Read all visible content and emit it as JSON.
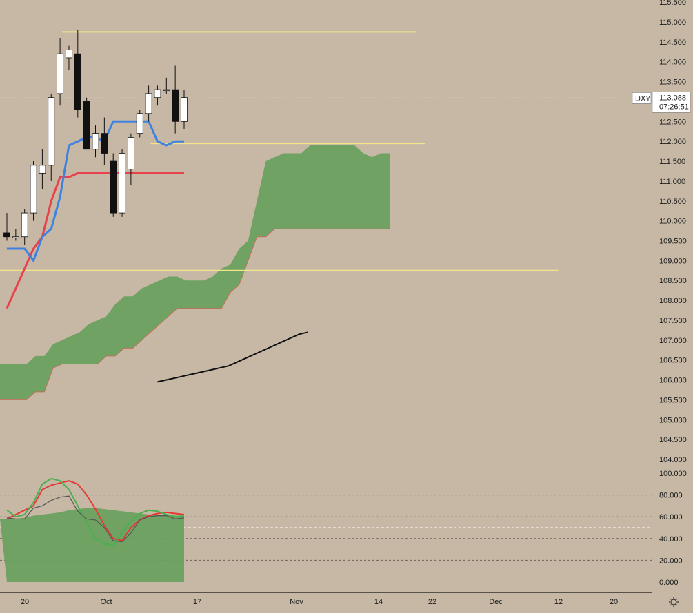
{
  "chart_data": [
    {
      "type": "candlestick",
      "symbol": "DXY",
      "last_price": "113.088",
      "countdown": "07:26:51",
      "ylim": [
        104.0,
        115.5
      ],
      "y_ticks": [
        "115.500",
        "115.000",
        "114.500",
        "114.000",
        "113.500",
        "113.000",
        "112.500",
        "112.000",
        "111.500",
        "111.000",
        "110.500",
        "110.000",
        "109.500",
        "109.000",
        "108.500",
        "108.000",
        "107.500",
        "107.000",
        "106.500",
        "106.000",
        "105.500",
        "105.000",
        "104.500",
        "104.000"
      ],
      "x_ticks": [
        "20",
        "Oct",
        "17",
        "Nov",
        "14",
        "22",
        "Dec",
        "12",
        "20"
      ],
      "candles": [
        {
          "o": 109.7,
          "h": 110.2,
          "l": 109.5,
          "c": 109.6
        },
        {
          "o": 109.6,
          "h": 109.8,
          "l": 109.5,
          "c": 109.6
        },
        {
          "o": 109.6,
          "h": 110.3,
          "l": 109.4,
          "c": 110.2
        },
        {
          "o": 110.2,
          "h": 111.5,
          "l": 110.0,
          "c": 111.4
        },
        {
          "o": 111.2,
          "h": 111.8,
          "l": 110.8,
          "c": 111.4
        },
        {
          "o": 111.4,
          "h": 113.2,
          "l": 111.0,
          "c": 113.1
        },
        {
          "o": 113.2,
          "h": 114.6,
          "l": 112.9,
          "c": 114.2
        },
        {
          "o": 114.1,
          "h": 114.4,
          "l": 113.8,
          "c": 114.3
        },
        {
          "o": 114.2,
          "h": 114.8,
          "l": 112.6,
          "c": 112.8
        },
        {
          "o": 113.0,
          "h": 113.1,
          "l": 111.8,
          "c": 111.8
        },
        {
          "o": 111.8,
          "h": 112.4,
          "l": 111.6,
          "c": 112.2
        },
        {
          "o": 112.2,
          "h": 112.6,
          "l": 111.4,
          "c": 111.7
        },
        {
          "o": 111.5,
          "h": 111.7,
          "l": 110.1,
          "c": 110.2
        },
        {
          "o": 110.2,
          "h": 111.8,
          "l": 110.1,
          "c": 111.7
        },
        {
          "o": 111.3,
          "h": 112.2,
          "l": 110.9,
          "c": 112.1
        },
        {
          "o": 112.2,
          "h": 112.8,
          "l": 112.1,
          "c": 112.7
        },
        {
          "o": 112.7,
          "h": 113.4,
          "l": 112.5,
          "c": 113.2
        },
        {
          "o": 113.1,
          "h": 113.4,
          "l": 112.9,
          "c": 113.3
        },
        {
          "o": 113.3,
          "h": 113.6,
          "l": 113.2,
          "c": 113.3
        },
        {
          "o": 113.3,
          "h": 113.9,
          "l": 112.2,
          "c": 112.5
        },
        {
          "o": 112.5,
          "h": 113.3,
          "l": 112.3,
          "c": 113.1
        }
      ],
      "tenkan_sen": [
        109.3,
        109.3,
        109.3,
        109.0,
        109.6,
        109.8,
        110.6,
        111.9,
        112.0,
        112.1,
        112.1,
        112.0,
        112.5,
        112.5,
        112.5,
        112.5,
        112.5,
        112.0,
        111.9,
        112.0,
        112.0
      ],
      "kijun_sen": [
        107.8,
        108.3,
        108.8,
        109.3,
        109.6,
        110.5,
        111.1,
        111.1,
        111.2,
        111.2,
        111.2,
        111.2,
        111.2,
        111.2,
        111.2,
        111.2,
        111.2,
        111.2,
        111.2,
        111.2,
        111.2
      ],
      "cloud_x": [
        0,
        1,
        2,
        3,
        4,
        5,
        6,
        7,
        8,
        9,
        10,
        11,
        12,
        13,
        14,
        15,
        16,
        17,
        18,
        19,
        20,
        21,
        22,
        23,
        24,
        25,
        26,
        27,
        28,
        29,
        30,
        31,
        32,
        33,
        34,
        35,
        36,
        37,
        38,
        39,
        40,
        41,
        42,
        43,
        44,
        45,
        46,
        47,
        48
      ],
      "cloud_upper": [
        106.4,
        106.4,
        106.4,
        106.4,
        106.6,
        106.6,
        106.9,
        107.0,
        107.1,
        107.2,
        107.4,
        107.5,
        107.6,
        107.9,
        108.1,
        108.1,
        108.3,
        108.4,
        108.5,
        108.6,
        108.6,
        108.5,
        108.5,
        108.5,
        108.6,
        108.8,
        108.9,
        109.3,
        109.5,
        110.5,
        111.5,
        111.6,
        111.7,
        111.7,
        111.7,
        111.9,
        111.9,
        111.9,
        111.9,
        111.9,
        111.9,
        111.7,
        111.6,
        111.7,
        111.7,
        null,
        null,
        null,
        null
      ],
      "cloud_lower": [
        105.5,
        105.5,
        105.5,
        105.5,
        105.7,
        105.7,
        106.3,
        106.4,
        106.4,
        106.4,
        106.4,
        106.4,
        106.6,
        106.6,
        106.8,
        106.8,
        107.0,
        107.2,
        107.4,
        107.6,
        107.8,
        107.8,
        107.8,
        107.8,
        107.8,
        107.8,
        108.2,
        108.4,
        109.0,
        109.6,
        109.6,
        109.8,
        109.8,
        109.8,
        109.8,
        109.8,
        109.8,
        109.8,
        109.8,
        109.8,
        109.8,
        109.8,
        109.8,
        109.8,
        109.8,
        null,
        null,
        null,
        null
      ],
      "chikou_curve": [
        [
          17,
          105.95
        ],
        [
          18,
          106.0
        ],
        [
          19,
          106.05
        ],
        [
          20,
          106.1
        ],
        [
          21,
          106.15
        ],
        [
          22,
          106.2
        ],
        [
          23,
          106.25
        ],
        [
          24,
          106.3
        ],
        [
          25,
          106.35
        ],
        [
          26,
          106.45
        ],
        [
          27,
          106.55
        ],
        [
          28,
          106.65
        ],
        [
          29,
          106.75
        ],
        [
          30,
          106.85
        ],
        [
          31,
          106.95
        ],
        [
          32,
          107.05
        ],
        [
          33,
          107.15
        ],
        [
          34,
          107.2
        ]
      ],
      "levels": [
        {
          "price": 114.75,
          "x_from": 7,
          "x_to": 47
        },
        {
          "price": 111.95,
          "x_from": 17,
          "x_to": 48
        },
        {
          "price": 108.75,
          "x_from": 0,
          "x_to": 63
        }
      ]
    },
    {
      "type": "oscillator",
      "ylim": [
        0,
        100
      ],
      "y_ticks": [
        "100.000",
        "80.000",
        "60.000",
        "40.000",
        "20.000",
        "0.000"
      ],
      "reference_lines": [
        80,
        60,
        50,
        40,
        20
      ],
      "area_fill": [
        58,
        58,
        59,
        61,
        62,
        63,
        64,
        66,
        67,
        68,
        68,
        67,
        66,
        65,
        64,
        63,
        62,
        62,
        62,
        61,
        61
      ],
      "series": [
        {
          "color": "#e53935",
          "values": [
            58,
            62,
            66,
            70,
            85,
            89,
            91,
            93,
            90,
            80,
            67,
            52,
            40,
            38,
            50,
            57,
            61,
            63,
            64,
            63,
            62
          ]
        },
        {
          "color": "#4caf50",
          "values": [
            66,
            60,
            62,
            73,
            90,
            95,
            93,
            85,
            70,
            55,
            40,
            35,
            34,
            45,
            56,
            63,
            66,
            65,
            62,
            60,
            61
          ]
        },
        {
          "color": "#555555",
          "values": [
            59,
            58,
            58,
            68,
            70,
            75,
            78,
            79,
            65,
            58,
            57,
            50,
            38,
            37,
            45,
            57,
            60,
            61,
            61,
            58,
            59
          ]
        }
      ]
    }
  ]
}
